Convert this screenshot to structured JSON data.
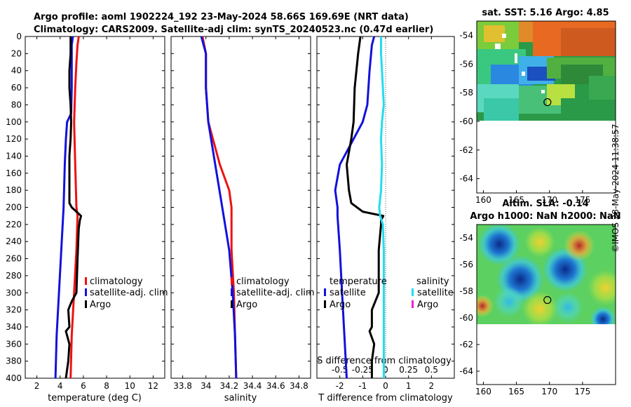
{
  "header": {
    "title_line1": "Argo profile: aoml 1902224_192 23-May-2024 58.66S 169.69E (NRT data)",
    "title_line2": "Climatology: CARS2009. Satellite-adj clim: synTS_20240523.nc (0.47d earlier)"
  },
  "chart_data": [
    {
      "type": "line",
      "id": "temperature",
      "xlabel": "temperature (deg C)",
      "ylabel": "",
      "xlim": [
        1,
        13
      ],
      "ylim": [
        400,
        0
      ],
      "xticks": [
        2,
        4,
        6,
        8,
        10,
        12
      ],
      "yticks": [
        0,
        20,
        40,
        60,
        80,
        100,
        120,
        140,
        160,
        180,
        200,
        220,
        240,
        260,
        280,
        300,
        320,
        340,
        360,
        380,
        400
      ],
      "legend": [
        "climatology",
        "satellite-adj. clim",
        "Argo"
      ],
      "series": [
        {
          "name": "climatology",
          "color": "#ee1111",
          "depth": [
            0,
            10,
            30,
            60,
            100,
            150,
            200,
            210,
            250,
            300,
            350,
            400
          ],
          "values": [
            5.6,
            5.5,
            5.4,
            5.3,
            5.2,
            5.3,
            5.4,
            5.5,
            5.4,
            5.2,
            5.0,
            4.9
          ]
        },
        {
          "name": "satellite-adj. clim",
          "color": "#1111dd",
          "depth": [
            0,
            10,
            30,
            60,
            90,
            100,
            120,
            150,
            200,
            250,
            300,
            350,
            400
          ],
          "values": [
            5.1,
            5.0,
            5.0,
            5.0,
            4.95,
            4.6,
            4.5,
            4.4,
            4.3,
            4.1,
            3.9,
            3.7,
            3.6
          ]
        },
        {
          "name": "Argo",
          "color": "#000000",
          "depth": [
            0,
            20,
            40,
            60,
            80,
            100,
            120,
            140,
            160,
            180,
            195,
            200,
            205,
            210,
            215,
            225,
            260,
            300,
            310,
            320,
            340,
            345,
            360,
            380,
            400
          ],
          "values": [
            4.9,
            4.9,
            4.8,
            4.8,
            4.9,
            4.95,
            4.9,
            4.8,
            4.8,
            4.8,
            4.8,
            5.0,
            5.4,
            5.8,
            5.7,
            5.6,
            5.5,
            5.4,
            5.0,
            4.7,
            4.8,
            4.5,
            4.8,
            4.7,
            4.5
          ]
        }
      ]
    },
    {
      "type": "line",
      "id": "salinity",
      "xlabel": "salinity",
      "xlim": [
        33.7,
        34.9
      ],
      "ylim": [
        400,
        0
      ],
      "xticks": [
        33.8,
        34,
        34.2,
        34.4,
        34.6,
        34.8
      ],
      "legend": [
        "climatology",
        "satellite-adj. clim",
        "Argo"
      ],
      "series": [
        {
          "name": "climatology",
          "color": "#ee1111",
          "depth": [
            0,
            20,
            60,
            100,
            150,
            180,
            200,
            250,
            300,
            350,
            400
          ],
          "values": [
            33.97,
            34.0,
            34.0,
            34.02,
            34.12,
            34.2,
            34.22,
            34.22,
            34.24,
            34.25,
            34.26
          ]
        },
        {
          "name": "satellite-adj. clim",
          "color": "#1111dd",
          "depth": [
            0,
            20,
            60,
            100,
            150,
            200,
            250,
            300,
            350,
            400
          ],
          "values": [
            33.96,
            34.0,
            34.0,
            34.02,
            34.08,
            34.14,
            34.2,
            34.23,
            34.25,
            34.26
          ]
        },
        {
          "name": "Argo",
          "color": "#000000",
          "depth": [],
          "values": []
        }
      ]
    },
    {
      "type": "line",
      "id": "difference",
      "xlabel": "T difference from climatology",
      "xlabel_top": "S difference from climatology",
      "xlim": [
        -3,
        3
      ],
      "ylim": [
        400,
        0
      ],
      "xticks": [
        -2,
        -1,
        0,
        1,
        2
      ],
      "xtick_labels": [
        "-2",
        "-1",
        "0",
        "1",
        "2"
      ],
      "s_xticks": [
        -0.5,
        -0.25,
        0,
        0.25,
        0.5
      ],
      "s_xtick_labels": [
        "-0.5",
        "-0.25",
        "0",
        "0.25",
        "0.5"
      ],
      "legend_temperature": {
        "title": "temperature",
        "items": [
          "satellite",
          "Argo"
        ]
      },
      "legend_salinity": {
        "title": "salinity",
        "items": [
          "satellite",
          "Argo"
        ]
      },
      "series": [
        {
          "name": "temperature satellite",
          "color": "#1111dd",
          "depth": [
            0,
            10,
            40,
            80,
            100,
            150,
            180,
            200,
            210,
            250,
            300,
            350,
            400
          ],
          "values": [
            -0.5,
            -0.6,
            -0.7,
            -0.8,
            -1.0,
            -2.0,
            -2.2,
            -2.1,
            -2.1,
            -2.0,
            -1.9,
            -1.8,
            -1.7
          ]
        },
        {
          "name": "temperature Argo",
          "color": "#000000",
          "depth": [
            0,
            20,
            60,
            100,
            120,
            150,
            180,
            195,
            205,
            210,
            215,
            220,
            250,
            300,
            320,
            340,
            345,
            360,
            380,
            400
          ],
          "values": [
            -1.1,
            -1.2,
            -1.35,
            -1.4,
            -1.5,
            -1.7,
            -1.6,
            -1.5,
            -1.0,
            -0.1,
            -0.2,
            -0.2,
            -0.3,
            -0.3,
            -0.6,
            -0.6,
            -0.7,
            -0.5,
            -0.6,
            -0.6
          ]
        },
        {
          "name": "salinity satellite",
          "color": "#22ddee",
          "depth": [
            0,
            20,
            40,
            60,
            80,
            100,
            120,
            150,
            180,
            200,
            210,
            220,
            250,
            300,
            350,
            400
          ],
          "values": [
            -0.05,
            -0.05,
            -0.04,
            -0.03,
            -0.02,
            -0.04,
            -0.05,
            -0.04,
            -0.05,
            -0.07,
            -0.06,
            -0.03,
            -0.02,
            -0.02,
            -0.02,
            -0.02
          ]
        }
      ]
    }
  ],
  "maps": {
    "sst_title": "sat. SST: 5.16 Argo: 4.85",
    "sla_title_line1": "Altim. SLA: -0.14",
    "sla_title_line2": "Argo h1000: NaN h2000: NaN",
    "lat_ticks": [
      "-54",
      "-56",
      "-58",
      "-60",
      "-62",
      "-64"
    ],
    "lon_ticks": [
      "160",
      "165",
      "170",
      "175"
    ],
    "lat_values": [
      -54,
      -56,
      -58,
      -60,
      -62,
      -64
    ],
    "lon_values": [
      160,
      165,
      170,
      175
    ],
    "lat_range": [
      -53,
      -65
    ],
    "lon_range": [
      159,
      180
    ],
    "profile_location": {
      "lon": 169.69,
      "lat": -58.66
    },
    "sst_location_value": 4.85
  },
  "stamp": "©IMOS 28-May-2024 11:38:57"
}
